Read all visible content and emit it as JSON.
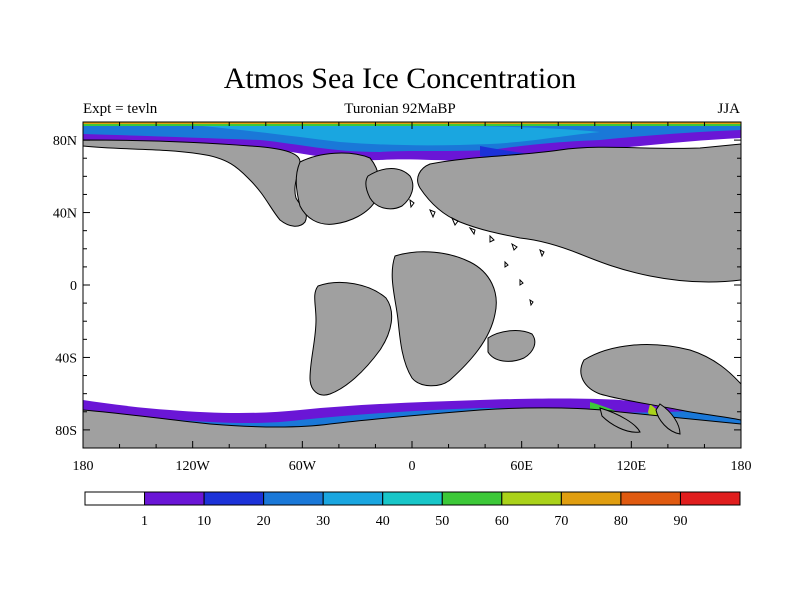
{
  "header": {
    "title": "Atmos Sea Ice Concentration",
    "left_label": "Expt = tevln",
    "center_label": "Turonian  92MaBP",
    "right_label": "JJA"
  },
  "map": {
    "projection": "cylindrical-equidistant",
    "lon_range": [
      -180,
      180
    ],
    "lat_range": [
      -90,
      90
    ],
    "land_color": "#a0a0a0",
    "ocean_color": "#ffffff",
    "y_ticks": [
      {
        "lat": 80,
        "label": "80N"
      },
      {
        "lat": 40,
        "label": "40N"
      },
      {
        "lat": 0,
        "label": "0"
      },
      {
        "lat": -40,
        "label": "40S"
      },
      {
        "lat": -80,
        "label": "80S"
      }
    ],
    "x_ticks": [
      {
        "lon": -180,
        "label": "180"
      },
      {
        "lon": -120,
        "label": "120W"
      },
      {
        "lon": -60,
        "label": "60W"
      },
      {
        "lon": 0,
        "label": "0"
      },
      {
        "lon": 60,
        "label": "60E"
      },
      {
        "lon": 120,
        "label": "120E"
      },
      {
        "lon": 180,
        "label": "180"
      }
    ]
  },
  "colorbar": {
    "colors": [
      "#ffffff",
      "#6a16d6",
      "#1c32d8",
      "#1a78d8",
      "#1aa6e0",
      "#18c6c8",
      "#3cc838",
      "#aad21a",
      "#e09e10",
      "#e05a10",
      "#e01e1e"
    ],
    "labels": [
      "1",
      "10",
      "20",
      "30",
      "40",
      "50",
      "60",
      "70",
      "80",
      "90"
    ]
  }
}
